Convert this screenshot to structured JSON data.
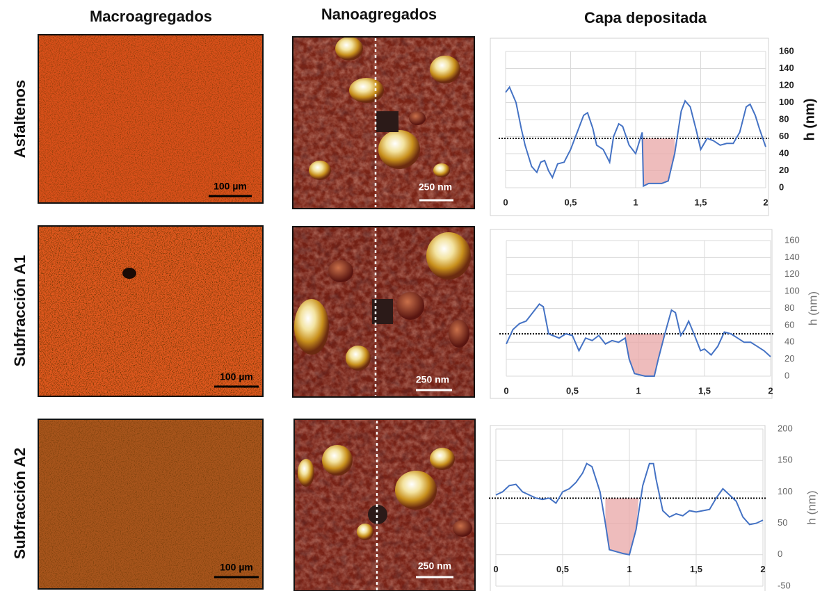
{
  "column_headers": [
    "Macroagregados",
    "Nanoagregados",
    "Capa depositada"
  ],
  "row_labels": [
    "Asfaltenos",
    "Subfracción A1",
    "Subfracción A2"
  ],
  "scale_bars": {
    "macro": "100 µm",
    "nano": "250 nm"
  },
  "chart_data": [
    {
      "type": "line",
      "ylabel": "h (nm)",
      "xlim": [
        0,
        2
      ],
      "xticks": [
        0,
        {
          "value": 0.5,
          "label": "0,5"
        },
        1,
        {
          "value": 1.5,
          "label": "1,5"
        },
        2
      ],
      "ylim": [
        0,
        160
      ],
      "yticks": [
        0,
        20,
        40,
        60,
        80,
        100,
        120,
        140,
        160
      ],
      "grid": true,
      "threshold": 58,
      "shaded_range": [
        1.05,
        1.3
      ],
      "series": [
        {
          "color": "#4472c4",
          "x": [
            0,
            0.03,
            0.08,
            0.12,
            0.15,
            0.2,
            0.24,
            0.27,
            0.3,
            0.33,
            0.36,
            0.4,
            0.45,
            0.5,
            0.55,
            0.6,
            0.63,
            0.67,
            0.7,
            0.75,
            0.8,
            0.83,
            0.87,
            0.9,
            0.95,
            1.0,
            1.03,
            1.05,
            1.06,
            1.1,
            1.15,
            1.2,
            1.25,
            1.3,
            1.35,
            1.38,
            1.42,
            1.47,
            1.5,
            1.55,
            1.6,
            1.65,
            1.7,
            1.75,
            1.8,
            1.85,
            1.88,
            1.92,
            1.95,
            2.0
          ],
          "values": [
            112,
            118,
            100,
            70,
            50,
            25,
            18,
            30,
            32,
            20,
            12,
            28,
            30,
            45,
            65,
            85,
            88,
            70,
            50,
            45,
            30,
            60,
            75,
            72,
            50,
            40,
            55,
            65,
            2,
            5,
            5,
            5,
            8,
            40,
            90,
            102,
            95,
            65,
            45,
            58,
            55,
            50,
            52,
            52,
            65,
            95,
            98,
            85,
            70,
            48
          ]
        }
      ]
    },
    {
      "type": "line",
      "ylabel": "h (nm)",
      "xlim": [
        0,
        2
      ],
      "xticks": [
        0,
        {
          "value": 0.5,
          "label": "0,5"
        },
        1,
        {
          "value": 1.5,
          "label": "1,5"
        },
        2
      ],
      "ylim": [
        0,
        160
      ],
      "yticks": [
        0,
        20,
        40,
        60,
        80,
        100,
        120,
        140,
        160
      ],
      "grid": true,
      "threshold": 50,
      "shaded_range": [
        0.9,
        1.2
      ],
      "series": [
        {
          "color": "#4472c4",
          "x": [
            0,
            0.05,
            0.1,
            0.15,
            0.2,
            0.25,
            0.28,
            0.32,
            0.4,
            0.45,
            0.5,
            0.55,
            0.6,
            0.65,
            0.7,
            0.75,
            0.8,
            0.85,
            0.9,
            0.93,
            0.97,
            1.05,
            1.12,
            1.15,
            1.2,
            1.25,
            1.28,
            1.32,
            1.35,
            1.38,
            1.42,
            1.47,
            1.5,
            1.55,
            1.6,
            1.65,
            1.7,
            1.75,
            1.8,
            1.85,
            1.9,
            1.95,
            2.0
          ],
          "values": [
            38,
            55,
            62,
            65,
            75,
            85,
            82,
            50,
            45,
            50,
            48,
            30,
            45,
            42,
            48,
            38,
            42,
            40,
            45,
            20,
            3,
            0,
            0,
            20,
            50,
            78,
            75,
            48,
            55,
            65,
            50,
            30,
            32,
            25,
            35,
            52,
            50,
            45,
            40,
            40,
            35,
            30,
            23
          ]
        }
      ]
    },
    {
      "type": "line",
      "ylabel": "h (nm)",
      "xlim": [
        0,
        2
      ],
      "xticks": [
        0,
        {
          "value": 0.5,
          "label": "0,5"
        },
        1,
        {
          "value": 1.5,
          "label": "1,5"
        },
        2
      ],
      "ylim": [
        -50,
        200
      ],
      "yticks": [
        -50,
        0,
        50,
        100,
        150,
        200
      ],
      "grid": true,
      "threshold": 90,
      "shaded_range": [
        0.82,
        1.07
      ],
      "series": [
        {
          "color": "#4472c4",
          "x": [
            0,
            0.05,
            0.1,
            0.15,
            0.2,
            0.25,
            0.3,
            0.35,
            0.4,
            0.45,
            0.5,
            0.55,
            0.6,
            0.65,
            0.68,
            0.72,
            0.78,
            0.82,
            0.85,
            0.9,
            0.95,
            1.0,
            1.05,
            1.1,
            1.15,
            1.18,
            1.2,
            1.25,
            1.3,
            1.35,
            1.4,
            1.45,
            1.5,
            1.55,
            1.6,
            1.65,
            1.7,
            1.75,
            1.8,
            1.85,
            1.9,
            1.95,
            2.0
          ],
          "values": [
            95,
            100,
            110,
            112,
            100,
            95,
            90,
            88,
            90,
            82,
            100,
            105,
            115,
            130,
            145,
            140,
            100,
            50,
            8,
            5,
            2,
            0,
            40,
            110,
            145,
            145,
            120,
            70,
            60,
            65,
            62,
            70,
            68,
            70,
            72,
            90,
            105,
            95,
            85,
            60,
            48,
            50,
            55
          ]
        }
      ]
    }
  ]
}
